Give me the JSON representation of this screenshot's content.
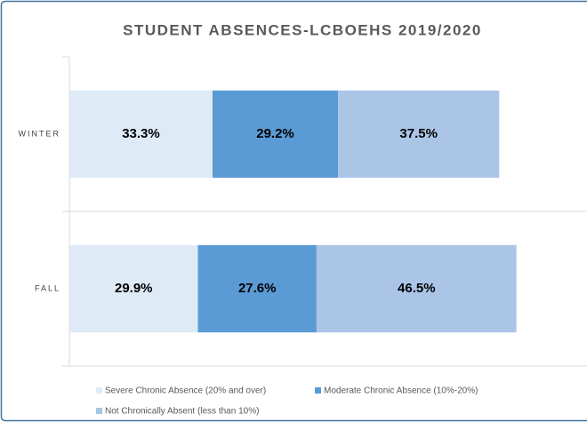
{
  "chart_data": {
    "type": "stacked-barh",
    "title": "STUDENT ABSENCES-LCBOEHS 2019/2020",
    "categories": [
      "WINTER",
      "FALL"
    ],
    "series": [
      {
        "name": "Severe Chronic Absence (20% and over)",
        "color": "#deebf7",
        "values": [
          33.3,
          29.9
        ],
        "value_labels": [
          "33.3%",
          "29.9%"
        ]
      },
      {
        "name": "Moderate Chronic Absence (10%-20%)",
        "color": "#5b9bd5",
        "values": [
          29.2,
          27.6
        ],
        "value_labels": [
          "29.2%",
          "27.6%"
        ]
      },
      {
        "name": "Not Chronically Absent (less than 10%)",
        "color": "#abc5e7",
        "values": [
          37.5,
          46.5
        ],
        "value_labels": [
          "37.5%",
          "46.5%"
        ]
      }
    ],
    "xlim": [
      0,
      120
    ],
    "legend": "bottom"
  }
}
